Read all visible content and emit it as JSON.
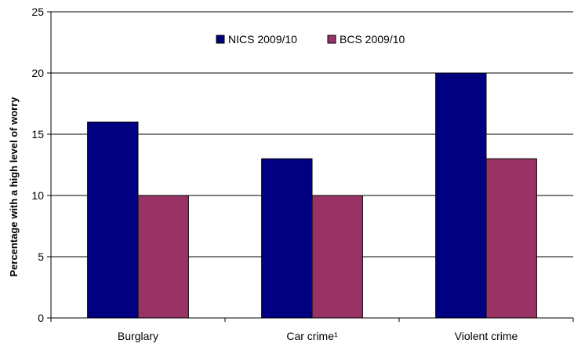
{
  "chart_data": {
    "type": "bar",
    "title": "",
    "xlabel": "",
    "ylabel": "Percentage with a high level of worry",
    "categories": [
      "Burglary",
      "Car crime¹",
      "Violent crime"
    ],
    "series": [
      {
        "name": "NICS 2009/10",
        "color": "#000080",
        "values": [
          16,
          13,
          20
        ]
      },
      {
        "name": "BCS 2009/10",
        "color": "#993366",
        "values": [
          10,
          10,
          13
        ]
      }
    ],
    "ylim": [
      0,
      25
    ],
    "yticks": [
      0,
      5,
      10,
      15,
      20,
      25
    ],
    "grid": true,
    "legend_position": "top-center"
  }
}
